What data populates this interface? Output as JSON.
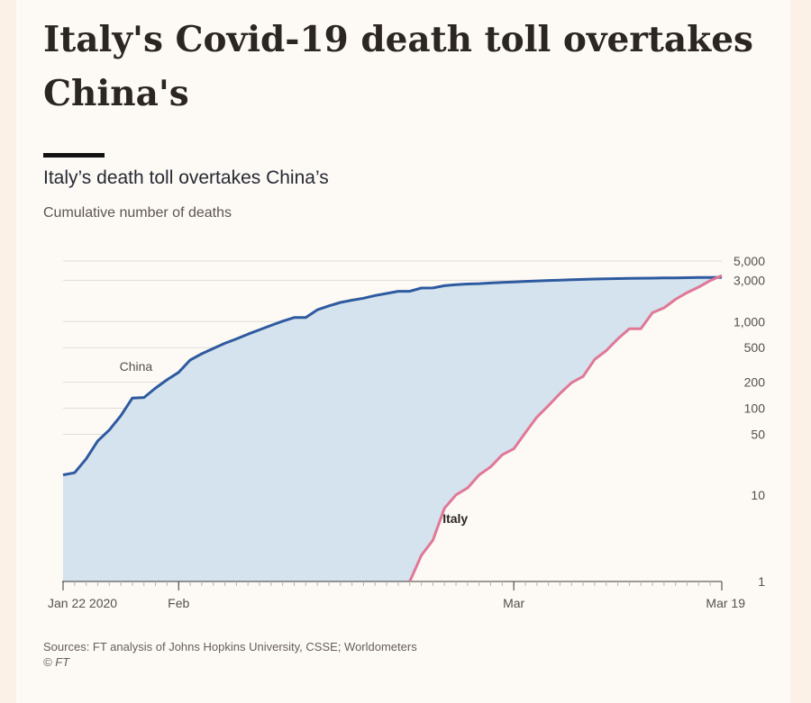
{
  "headline": "Italy's Covid-19 death toll overtakes China's",
  "chart_data": {
    "type": "line",
    "title": "Italy’s death toll overtakes China’s",
    "subtitle": "Cumulative number of deaths",
    "y_scale": "log",
    "ylim": [
      1,
      5000
    ],
    "y_ticks": [
      {
        "value": 5000,
        "label": "5,000"
      },
      {
        "value": 3000,
        "label": "3,000"
      },
      {
        "value": 1000,
        "label": "1,000"
      },
      {
        "value": 500,
        "label": "500"
      },
      {
        "value": 200,
        "label": "200"
      },
      {
        "value": 100,
        "label": "100"
      },
      {
        "value": 50,
        "label": "50"
      },
      {
        "value": 10,
        "label": "10"
      },
      {
        "value": 1,
        "label": "1"
      }
    ],
    "x_range": [
      "2020-01-22",
      "2020-03-19"
    ],
    "x_ticks": [
      {
        "date": "2020-01-22",
        "label": "Jan 22 2020"
      },
      {
        "date": "2020-02-01",
        "label": "Feb"
      },
      {
        "date": "2020-03-01",
        "label": "Mar"
      },
      {
        "date": "2020-03-19",
        "label": "Mar 19"
      }
    ],
    "series": [
      {
        "name": "China",
        "color": "#2e5a9f",
        "fill": "#d4e3ee",
        "label_date": "2020-01-28",
        "label_value": 270,
        "x": [
          "2020-01-22",
          "2020-01-23",
          "2020-01-24",
          "2020-01-25",
          "2020-01-26",
          "2020-01-27",
          "2020-01-28",
          "2020-01-29",
          "2020-01-30",
          "2020-01-31",
          "2020-02-01",
          "2020-02-02",
          "2020-02-03",
          "2020-02-04",
          "2020-02-05",
          "2020-02-06",
          "2020-02-07",
          "2020-02-08",
          "2020-02-09",
          "2020-02-10",
          "2020-02-11",
          "2020-02-12",
          "2020-02-13",
          "2020-02-14",
          "2020-02-15",
          "2020-02-16",
          "2020-02-17",
          "2020-02-18",
          "2020-02-19",
          "2020-02-20",
          "2020-02-21",
          "2020-02-22",
          "2020-02-23",
          "2020-02-24",
          "2020-02-25",
          "2020-02-26",
          "2020-02-27",
          "2020-02-28",
          "2020-02-29",
          "2020-03-01",
          "2020-03-02",
          "2020-03-03",
          "2020-03-04",
          "2020-03-05",
          "2020-03-06",
          "2020-03-07",
          "2020-03-08",
          "2020-03-09",
          "2020-03-10",
          "2020-03-11",
          "2020-03-12",
          "2020-03-13",
          "2020-03-14",
          "2020-03-15",
          "2020-03-16",
          "2020-03-17",
          "2020-03-18",
          "2020-03-19"
        ],
        "values": [
          17,
          18,
          26,
          42,
          56,
          82,
          131,
          133,
          171,
          213,
          259,
          361,
          425,
          490,
          562,
          632,
          717,
          804,
          904,
          1011,
          1112,
          1113,
          1367,
          1520,
          1662,
          1765,
          1863,
          2002,
          2114,
          2236,
          2236,
          2441,
          2443,
          2593,
          2663,
          2715,
          2744,
          2788,
          2835,
          2870,
          2912,
          2945,
          2981,
          3013,
          3042,
          3070,
          3097,
          3119,
          3136,
          3158,
          3169,
          3176,
          3189,
          3199,
          3213,
          3226,
          3237,
          3245
        ]
      },
      {
        "name": "Italy",
        "color": "#e07897",
        "label_date": "2020-02-24",
        "label_value": 5.2,
        "x": [
          "2020-02-21",
          "2020-02-22",
          "2020-02-23",
          "2020-02-24",
          "2020-02-25",
          "2020-02-26",
          "2020-02-27",
          "2020-02-28",
          "2020-02-29",
          "2020-03-01",
          "2020-03-02",
          "2020-03-03",
          "2020-03-04",
          "2020-03-05",
          "2020-03-06",
          "2020-03-07",
          "2020-03-08",
          "2020-03-09",
          "2020-03-10",
          "2020-03-11",
          "2020-03-12",
          "2020-03-13",
          "2020-03-14",
          "2020-03-15",
          "2020-03-16",
          "2020-03-17",
          "2020-03-18",
          "2020-03-19"
        ],
        "values": [
          1,
          2,
          3,
          7,
          10,
          12,
          17,
          21,
          29,
          34,
          52,
          79,
          107,
          148,
          197,
          233,
          366,
          463,
          631,
          827,
          827,
          1266,
          1441,
          1809,
          2158,
          2503,
          2978,
          3405
        ]
      }
    ]
  },
  "footer": {
    "sources": "Sources: FT analysis of Johns Hopkins University, CSSE; Worldometers",
    "copyright": "© FT"
  }
}
